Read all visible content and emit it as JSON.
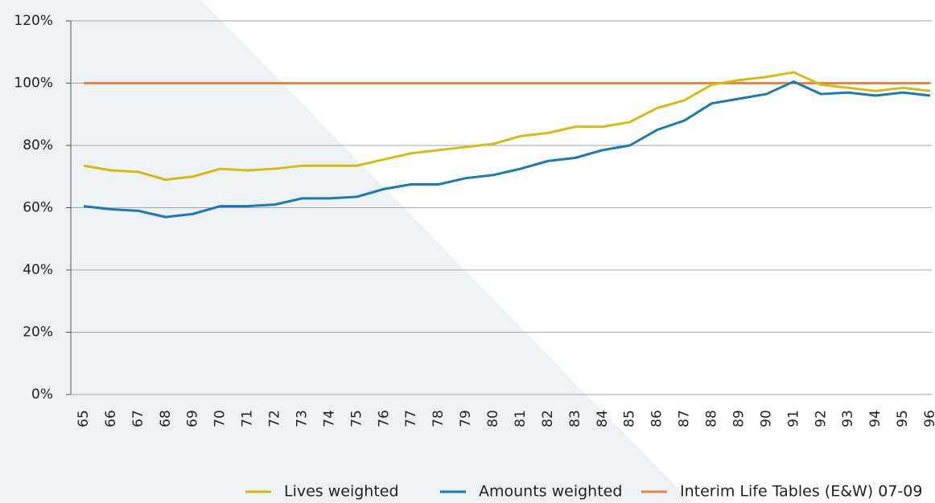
{
  "chart_data": {
    "type": "line",
    "categories": [
      "65",
      "66",
      "67",
      "68",
      "69",
      "70",
      "71",
      "72",
      "73",
      "74",
      "75",
      "76",
      "77",
      "78",
      "79",
      "80",
      "81",
      "82",
      "83",
      "84",
      "85",
      "86",
      "87",
      "88",
      "89",
      "90",
      "91",
      "92",
      "93",
      "94",
      "95",
      "96"
    ],
    "series": [
      {
        "name": "Lives weighted",
        "color": "#d4bc10",
        "values": [
          73.5,
          72,
          71.5,
          69,
          70,
          72.5,
          72,
          72.5,
          73.5,
          73.5,
          73.5,
          75.5,
          77.5,
          78.5,
          79.5,
          80.5,
          83,
          84,
          86,
          86,
          87.5,
          92,
          94.5,
          99.5,
          101,
          102,
          103.5,
          99.5,
          98.5,
          97.5,
          98.5,
          97.5
        ]
      },
      {
        "name": "Amounts weighted",
        "color": "#1a7ab5",
        "values": [
          60.5,
          59.5,
          59,
          57,
          58,
          60.5,
          60.5,
          61,
          63,
          63,
          63.5,
          66,
          67.5,
          67.5,
          69.5,
          70.5,
          72.5,
          75,
          76,
          78.5,
          80,
          85,
          88,
          93.5,
          95,
          96.5,
          100.5,
          96.5,
          97,
          96,
          97,
          96
        ]
      },
      {
        "name": "Interim Life Tables (E&W) 07-09",
        "color": "#e08a4a",
        "values": [
          100,
          100,
          100,
          100,
          100,
          100,
          100,
          100,
          100,
          100,
          100,
          100,
          100,
          100,
          100,
          100,
          100,
          100,
          100,
          100,
          100,
          100,
          100,
          100,
          100,
          100,
          100,
          100,
          100,
          100,
          100,
          100
        ]
      }
    ],
    "ylim": [
      0,
      120
    ],
    "yticks": [
      {
        "value": 0,
        "label": "0%"
      },
      {
        "value": 20,
        "label": "20%"
      },
      {
        "value": 40,
        "label": "40%"
      },
      {
        "value": 60,
        "label": "60%"
      },
      {
        "value": 80,
        "label": "80%"
      },
      {
        "value": 100,
        "label": "100%"
      },
      {
        "value": 120,
        "label": "120%"
      }
    ],
    "grid": true,
    "legend": "bottom"
  }
}
